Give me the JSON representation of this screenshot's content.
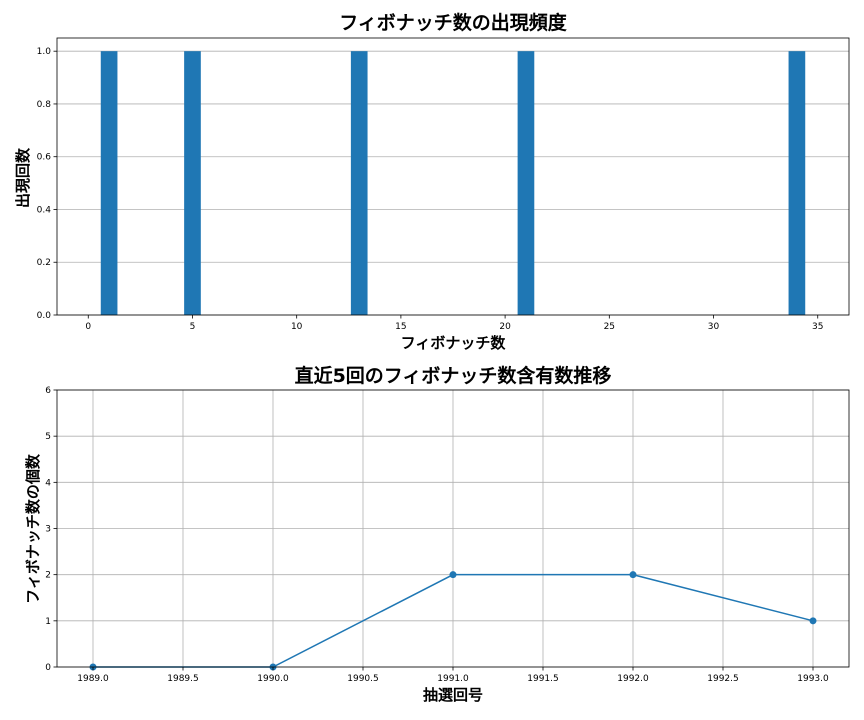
{
  "chart_data": [
    {
      "type": "bar",
      "title": "フィボナッチ数の出現頻度",
      "xlabel": "フィボナッチ数",
      "ylabel": "出現回数",
      "x": [
        1,
        5,
        13,
        21,
        34
      ],
      "values": [
        1,
        1,
        1,
        1,
        1
      ],
      "xlim": [
        -1.5,
        36.5
      ],
      "ylim": [
        0,
        1.05
      ],
      "xticks": [
        0,
        5,
        10,
        15,
        20,
        25,
        30,
        35
      ],
      "xtick_labels": [
        "0",
        "5",
        "10",
        "15",
        "20",
        "25",
        "30",
        "35"
      ],
      "yticks": [
        0,
        0.2,
        0.4,
        0.6,
        0.8,
        1.0
      ],
      "ytick_labels": [
        "0.0",
        "0.2",
        "0.4",
        "0.6",
        "0.8",
        "1.0"
      ],
      "grid": "y",
      "color": "#1f77b4"
    },
    {
      "type": "line",
      "title": "直近5回のフィボナッチ数含有数推移",
      "xlabel": "抽選回号",
      "ylabel": "フィボナッチ数の個数",
      "x": [
        1989,
        1990,
        1991,
        1992,
        1993
      ],
      "values": [
        0,
        0,
        2,
        2,
        1
      ],
      "xlim": [
        1988.8,
        1993.2
      ],
      "ylim": [
        0,
        6
      ],
      "xticks": [
        1989.0,
        1989.5,
        1990.0,
        1990.5,
        1991.0,
        1991.5,
        1992.0,
        1992.5,
        1993.0
      ],
      "xtick_labels": [
        "1989.0",
        "1989.5",
        "1990.0",
        "1990.5",
        "1991.0",
        "1991.5",
        "1992.0",
        "1992.5",
        "1993.0"
      ],
      "yticks": [
        0,
        1,
        2,
        3,
        4,
        5,
        6
      ],
      "ytick_labels": [
        "0",
        "1",
        "2",
        "3",
        "4",
        "5",
        "6"
      ],
      "grid": "both",
      "color": "#1f77b4",
      "marker": "circle"
    }
  ]
}
